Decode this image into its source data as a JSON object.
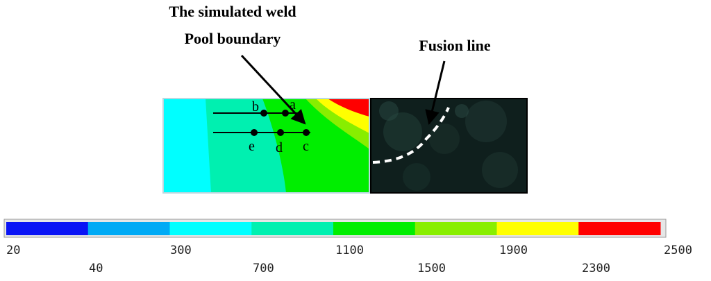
{
  "annotations": {
    "pool_line1": "The simulated weld",
    "pool_line2": "Pool boundary",
    "fusion": "Fusion line"
  },
  "points": [
    "a",
    "b",
    "c",
    "d",
    "e"
  ],
  "colorbar": {
    "colors": [
      "#0a14f5",
      "#00aaf5",
      "#00ffff",
      "#00f0b0",
      "#00ee00",
      "#88ee00",
      "#ffff00",
      "#ff0000"
    ],
    "labels_row1": [
      "20",
      "300",
      "1100",
      "1900"
    ],
    "labels_row2": [
      "40",
      "700",
      "1500",
      "2300"
    ],
    "label_end": "2500"
  }
}
